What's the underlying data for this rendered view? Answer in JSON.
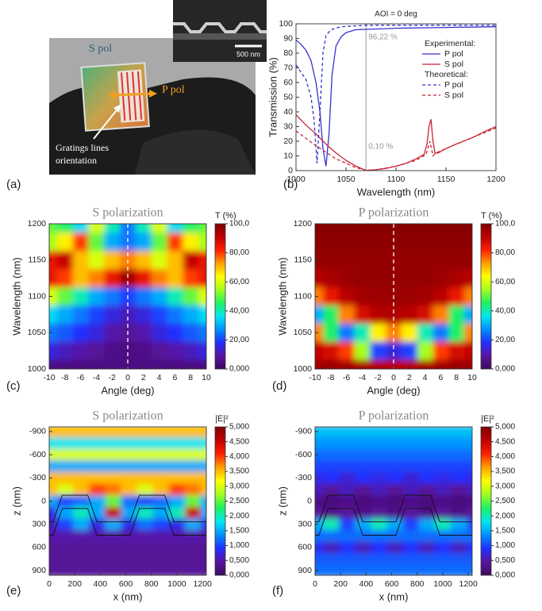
{
  "photo": {
    "panel_label": "(a)",
    "s_pol_label": "S pol",
    "p_pol_label": "P pol",
    "grating_label": [
      "Gratings lines",
      "orientation"
    ],
    "scale_bar": "500 nm"
  },
  "chart_data": [
    {
      "type": "line",
      "panel_label": "(b)",
      "title": "AOI = 0 deg",
      "xlabel": "Wavelength (nm)",
      "ylabel": "Transmission (%)",
      "xlim": [
        1000,
        1200
      ],
      "ylim": [
        0,
        100
      ],
      "xticks": [
        1000,
        1050,
        1100,
        1150,
        1200
      ],
      "yticks": [
        0,
        10,
        20,
        30,
        40,
        50,
        60,
        70,
        80,
        90,
        100
      ],
      "vline": 1070,
      "annotations": [
        {
          "text": "96,22 %",
          "value": 96.22
        },
        {
          "text": "0,10 %",
          "value": 0.1
        }
      ],
      "legend_titles": [
        "Experimental:",
        "Theoretical:"
      ],
      "legend": "upper right",
      "series": [
        {
          "name": "P pol",
          "color": "#3333cc",
          "dash": false,
          "x": [
            1000,
            1005,
            1010,
            1015,
            1020,
            1024,
            1027,
            1030,
            1033,
            1036,
            1040,
            1045,
            1050,
            1060,
            1070,
            1100,
            1150,
            1200
          ],
          "values": [
            89,
            86,
            82,
            75,
            60,
            40,
            15,
            3,
            25,
            65,
            85,
            91,
            94,
            96,
            96.2,
            97,
            97.5,
            98
          ]
        },
        {
          "name": "S pol",
          "color": "#cc2233",
          "dash": false,
          "x": [
            1000,
            1010,
            1020,
            1030,
            1040,
            1050,
            1060,
            1070,
            1080,
            1090,
            1100,
            1110,
            1120,
            1128,
            1131,
            1133,
            1135,
            1137,
            1139,
            1142,
            1150,
            1160,
            1175,
            1190,
            1200
          ],
          "values": [
            38,
            31,
            25,
            18,
            12,
            7,
            3,
            0.1,
            0.6,
            1.5,
            3,
            5,
            8,
            11,
            18,
            30,
            35,
            20,
            12,
            12,
            15,
            18,
            22,
            27,
            30
          ]
        },
        {
          "name": "P pol",
          "color": "#3333cc",
          "dash": true,
          "x": [
            1000,
            1010,
            1015,
            1018,
            1021,
            1024,
            1027,
            1030,
            1035,
            1045,
            1070,
            1200
          ],
          "values": [
            72,
            62,
            50,
            35,
            5,
            40,
            80,
            92,
            96,
            98,
            99,
            99
          ]
        },
        {
          "name": "S pol",
          "color": "#cc2233",
          "dash": true,
          "x": [
            1000,
            1020,
            1040,
            1060,
            1070,
            1080,
            1100,
            1120,
            1130,
            1134,
            1137,
            1140,
            1160,
            1200
          ],
          "values": [
            27,
            17,
            8,
            2,
            0.3,
            0.5,
            3,
            7,
            11,
            20,
            10,
            12,
            18,
            29
          ]
        }
      ]
    },
    {
      "type": "heatmap",
      "panel_label": "(c)",
      "title": "S polarization",
      "xlabel": "Angle (deg)",
      "ylabel": "Wavelength (nm)",
      "colorbar_title": "T (%)",
      "xlim": [
        -10,
        10
      ],
      "ylim": [
        1000,
        1200
      ],
      "xticks": [
        -10,
        -8,
        -6,
        -4,
        -2,
        0,
        2,
        4,
        6,
        8,
        10
      ],
      "yticks": [
        1000,
        1050,
        1100,
        1150,
        1200
      ],
      "vline": 0,
      "clim": [
        0,
        100
      ],
      "cticks": [
        {
          "value": 0,
          "label": "0,000"
        },
        {
          "value": 20,
          "label": "20,00"
        },
        {
          "value": 40,
          "label": "40,00"
        },
        {
          "value": 60,
          "label": "60,00"
        },
        {
          "value": 80,
          "label": "80,00"
        },
        {
          "value": 100,
          "label": "100,0"
        }
      ],
      "colormap": [
        "#3d0a5e",
        "#5a14a0",
        "#2030ff",
        "#0090ff",
        "#00e8f0",
        "#20f060",
        "#a0ff20",
        "#ffff00",
        "#ffa000",
        "#ff2000",
        "#c00000",
        "#800000"
      ],
      "x": [
        -10,
        -8,
        -6,
        -4,
        -2,
        0,
        2,
        4,
        6,
        8,
        10
      ],
      "y": [
        1200,
        1175,
        1150,
        1125,
        1100,
        1075,
        1050,
        1025,
        1000
      ],
      "z": [
        [
          50,
          45,
          35,
          60,
          40,
          25,
          40,
          60,
          35,
          45,
          50
        ],
        [
          55,
          65,
          80,
          50,
          30,
          25,
          30,
          50,
          80,
          65,
          55
        ],
        [
          85,
          90,
          70,
          60,
          70,
          75,
          70,
          60,
          70,
          90,
          85
        ],
        [
          85,
          80,
          70,
          75,
          85,
          95,
          85,
          75,
          70,
          80,
          85
        ],
        [
          60,
          50,
          40,
          30,
          25,
          20,
          25,
          30,
          40,
          50,
          60
        ],
        [
          35,
          30,
          25,
          20,
          15,
          12,
          15,
          20,
          25,
          30,
          35
        ],
        [
          25,
          22,
          18,
          15,
          10,
          8,
          10,
          15,
          18,
          22,
          25
        ],
        [
          15,
          12,
          10,
          8,
          6,
          5,
          6,
          8,
          10,
          12,
          15
        ],
        [
          5,
          5,
          5,
          5,
          5,
          5,
          5,
          5,
          5,
          5,
          5
        ]
      ]
    },
    {
      "type": "heatmap",
      "panel_label": "(d)",
      "title": "P polarization",
      "xlabel": "Angle (deg)",
      "ylabel": "Wavelength (nm)",
      "colorbar_title": "T (%)",
      "xlim": [
        -10,
        10
      ],
      "ylim": [
        1000,
        1200
      ],
      "xticks": [
        -10,
        -8,
        -6,
        -4,
        -2,
        0,
        2,
        4,
        6,
        8,
        10
      ],
      "yticks": [
        1000,
        1050,
        1100,
        1150,
        1200
      ],
      "vline": 0,
      "clim": [
        0,
        100
      ],
      "cticks": [
        {
          "value": 0,
          "label": "0,000"
        },
        {
          "value": 20,
          "label": "20,00"
        },
        {
          "value": 40,
          "label": "40,00"
        },
        {
          "value": 60,
          "label": "60,00"
        },
        {
          "value": 80,
          "label": "80,00"
        },
        {
          "value": 100,
          "label": "100,0"
        }
      ],
      "colormap": [
        "#3d0a5e",
        "#5a14a0",
        "#2030ff",
        "#0090ff",
        "#00e8f0",
        "#20f060",
        "#a0ff20",
        "#ffff00",
        "#ffa000",
        "#ff2000",
        "#c00000",
        "#800000"
      ],
      "x": [
        -10,
        -8,
        -6,
        -4,
        -2,
        0,
        2,
        4,
        6,
        8,
        10
      ],
      "y": [
        1200,
        1175,
        1150,
        1125,
        1100,
        1075,
        1050,
        1025,
        1000
      ],
      "z": [
        [
          99,
          99,
          99,
          99,
          99,
          99,
          99,
          99,
          99,
          99,
          99
        ],
        [
          98,
          98,
          98,
          98,
          98,
          98,
          98,
          98,
          98,
          98,
          98
        ],
        [
          97,
          97,
          97,
          97,
          97,
          97,
          97,
          97,
          97,
          97,
          97
        ],
        [
          92,
          94,
          96,
          97,
          97,
          97,
          97,
          97,
          96,
          94,
          92
        ],
        [
          75,
          85,
          92,
          95,
          96,
          96,
          96,
          95,
          92,
          85,
          75
        ],
        [
          30,
          45,
          75,
          88,
          92,
          93,
          92,
          88,
          75,
          45,
          30
        ],
        [
          75,
          45,
          25,
          40,
          65,
          75,
          65,
          40,
          25,
          45,
          75
        ],
        [
          90,
          88,
          80,
          55,
          20,
          15,
          20,
          55,
          80,
          88,
          90
        ],
        [
          96,
          96,
          95,
          94,
          92,
          92,
          92,
          94,
          95,
          96,
          96
        ]
      ]
    },
    {
      "type": "heatmap",
      "panel_label": "(e)",
      "title": "S polarization",
      "xlabel": "x (nm)",
      "ylabel": "z (nm)",
      "colorbar_title": "|E|²",
      "xlim": [
        0,
        1230
      ],
      "ylim": [
        960,
        -960
      ],
      "xticks": [
        0,
        200,
        400,
        600,
        800,
        1000,
        1200
      ],
      "yticks": [
        -900,
        -600,
        -300,
        0,
        300,
        600,
        900
      ],
      "clim": [
        0,
        5
      ],
      "cticks": [
        {
          "value": 0,
          "label": "0,000"
        },
        {
          "value": 0.5,
          "label": "0,500"
        },
        {
          "value": 1,
          "label": "1,000"
        },
        {
          "value": 1.5,
          "label": "1,500"
        },
        {
          "value": 2,
          "label": "2,000"
        },
        {
          "value": 2.5,
          "label": "2,500"
        },
        {
          "value": 3,
          "label": "3,000"
        },
        {
          "value": 3.5,
          "label": "3,500"
        },
        {
          "value": 4,
          "label": "4,000"
        },
        {
          "value": 4.5,
          "label": "4,500"
        },
        {
          "value": 5,
          "label": "5,000"
        }
      ],
      "colormap": [
        "#3d0a5e",
        "#5a14a0",
        "#2030ff",
        "#0090ff",
        "#00e8f0",
        "#20f060",
        "#a0ff20",
        "#ffff00",
        "#ffa000",
        "#ff2000",
        "#c00000",
        "#800000"
      ],
      "x": [
        0,
        125,
        250,
        375,
        500,
        625,
        750,
        875,
        1000,
        1125,
        1250
      ],
      "y": [
        -900,
        -750,
        -600,
        -450,
        -300,
        -150,
        0,
        150,
        300,
        450,
        600,
        750,
        900
      ],
      "z": [
        [
          3.5,
          3.5,
          3.5,
          3.5,
          3.5,
          3.5,
          3.5,
          3.5,
          3.5,
          3.5,
          3.5
        ],
        [
          1.8,
          1.8,
          1.8,
          1.8,
          1.8,
          1.8,
          1.8,
          1.8,
          1.8,
          1.8,
          1.8
        ],
        [
          3,
          3,
          3,
          3,
          3,
          3,
          3,
          3,
          3,
          3,
          3
        ],
        [
          1.5,
          1.5,
          1.5,
          1.5,
          1.5,
          1.5,
          1.5,
          1.5,
          1.5,
          1.5,
          1.5
        ],
        [
          3.5,
          3.5,
          3.5,
          3.5,
          3.5,
          3.5,
          3.5,
          3.5,
          3.5,
          3.5,
          3.5
        ],
        [
          3.5,
          3,
          3.5,
          4,
          3.8,
          3.5,
          3,
          3.5,
          4,
          3.8,
          3.5
        ],
        [
          1.5,
          1,
          1.2,
          1.5,
          2.5,
          1.2,
          1,
          1.2,
          1.5,
          2.5,
          1.5
        ],
        [
          0.8,
          1.5,
          2,
          1.5,
          4.5,
          1.5,
          2,
          1.5,
          2,
          4.5,
          1.5
        ],
        [
          0.6,
          1,
          1.5,
          0.8,
          1.5,
          0.8,
          1.2,
          1,
          0.8,
          1.5,
          0.8
        ],
        [
          0.5,
          0.5,
          0.5,
          0.5,
          0.5,
          0.5,
          0.5,
          0.5,
          0.5,
          0.5,
          0.5
        ],
        [
          0.4,
          0.4,
          0.4,
          0.4,
          0.4,
          0.4,
          0.4,
          0.4,
          0.4,
          0.4,
          0.4
        ],
        [
          0.4,
          0.4,
          0.4,
          0.4,
          0.4,
          0.4,
          0.4,
          0.4,
          0.4,
          0.4,
          0.4
        ],
        [
          0.4,
          0.4,
          0.4,
          0.4,
          0.4,
          0.4,
          0.4,
          0.4,
          0.4,
          0.4,
          0.4
        ]
      ]
    },
    {
      "type": "heatmap",
      "panel_label": "(f)",
      "title": "P polarization",
      "xlabel": "x (nm)",
      "ylabel": "z (nm)",
      "colorbar_title": "|E|²",
      "xlim": [
        0,
        1230
      ],
      "ylim": [
        960,
        -960
      ],
      "xticks": [
        0,
        200,
        400,
        600,
        800,
        1000,
        1200
      ],
      "yticks": [
        -900,
        -600,
        -300,
        0,
        300,
        600,
        900
      ],
      "clim": [
        0,
        5
      ],
      "cticks": [
        {
          "value": 0,
          "label": "0,000"
        },
        {
          "value": 0.5,
          "label": "0,500"
        },
        {
          "value": 1,
          "label": "1,000"
        },
        {
          "value": 1.5,
          "label": "1,500"
        },
        {
          "value": 2,
          "label": "2,000"
        },
        {
          "value": 2.5,
          "label": "2,500"
        },
        {
          "value": 3,
          "label": "3,000"
        },
        {
          "value": 3.5,
          "label": "3,500"
        },
        {
          "value": 4,
          "label": "4,000"
        },
        {
          "value": 4.5,
          "label": "4,500"
        },
        {
          "value": 5,
          "label": "5,000"
        }
      ],
      "colormap": [
        "#3d0a5e",
        "#5a14a0",
        "#2030ff",
        "#0090ff",
        "#00e8f0",
        "#20f060",
        "#a0ff20",
        "#ffff00",
        "#ffa000",
        "#ff2000",
        "#c00000",
        "#800000"
      ],
      "x": [
        0,
        125,
        250,
        375,
        500,
        625,
        750,
        875,
        1000,
        1125,
        1250
      ],
      "y": [
        -900,
        -750,
        -600,
        -450,
        -300,
        -150,
        0,
        150,
        300,
        450,
        600,
        750,
        900
      ],
      "z": [
        [
          1.6,
          1.6,
          1.6,
          1.6,
          1.6,
          1.6,
          1.6,
          1.6,
          1.6,
          1.6,
          1.6
        ],
        [
          1.4,
          1.4,
          1.4,
          1.4,
          1.4,
          1.4,
          1.4,
          1.4,
          1.4,
          1.4,
          1.4
        ],
        [
          1.2,
          1.2,
          1.2,
          1.2,
          1.2,
          1.2,
          1.2,
          1.2,
          1.2,
          1.2,
          1.2
        ],
        [
          1,
          1,
          1,
          1,
          1,
          1,
          1,
          1,
          1,
          1,
          1
        ],
        [
          0.8,
          0.9,
          0.7,
          0.9,
          0.8,
          0.9,
          0.7,
          0.9,
          0.8,
          0.9,
          0.8
        ],
        [
          0.6,
          0.4,
          0.6,
          0.4,
          0.6,
          0.4,
          0.6,
          0.4,
          0.6,
          0.4,
          0.6
        ],
        [
          0.3,
          0.2,
          0.3,
          0.2,
          0.3,
          0.2,
          0.3,
          0.2,
          0.3,
          0.2,
          0.3
        ],
        [
          0.4,
          0.3,
          0.4,
          0.3,
          0.4,
          0.3,
          0.4,
          0.3,
          0.4,
          0.3,
          0.4
        ],
        [
          1.5,
          2,
          1,
          1.5,
          2,
          1.5,
          1,
          1.5,
          2,
          1.5,
          1
        ],
        [
          1.2,
          1.2,
          1.2,
          1.2,
          1.2,
          1.2,
          1.2,
          1.2,
          1.2,
          1.2,
          1.2
        ],
        [
          0.9,
          0.6,
          0.9,
          0.6,
          0.9,
          0.6,
          0.9,
          0.6,
          0.9,
          0.6,
          0.9
        ],
        [
          1.1,
          1.1,
          1.1,
          1.1,
          1.1,
          1.1,
          1.1,
          1.1,
          1.1,
          1.1,
          1.1
        ],
        [
          1.2,
          1.2,
          1.2,
          1.2,
          1.2,
          1.2,
          1.2,
          1.2,
          1.2,
          1.2,
          1.2
        ]
      ]
    }
  ]
}
